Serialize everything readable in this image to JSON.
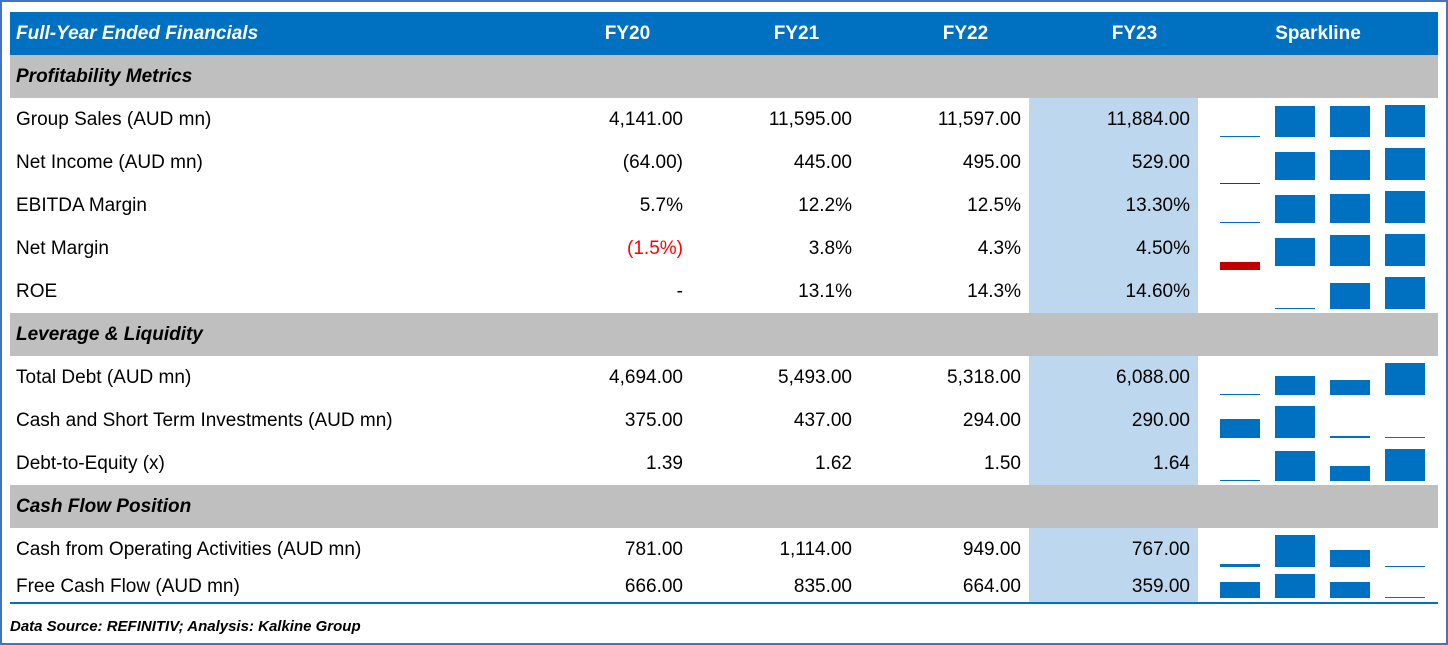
{
  "header": {
    "title": "Full-Year Ended Financials",
    "years": [
      "FY20",
      "FY21",
      "FY22",
      "FY23"
    ],
    "sparkline": "Sparkline"
  },
  "colors": {
    "header": "#0070C0",
    "section": "#BFBFBF",
    "highlight": "#BDD7EE",
    "bar": "#0070C0",
    "negative": "#C00000"
  },
  "sections": [
    {
      "title": "Profitability Metrics",
      "rows": [
        {
          "label": "Group Sales (AUD mn)",
          "cells": [
            "4,141.00",
            "11,595.00",
            "11,597.00",
            "11,884.00"
          ],
          "values": [
            4141,
            11595,
            11597,
            11884
          ]
        },
        {
          "label": "Net Income (AUD mn)",
          "cells": [
            "(64.00)",
            "445.00",
            "495.00",
            "529.00"
          ],
          "values": [
            -64,
            445,
            495,
            529
          ]
        },
        {
          "label": "EBITDA Margin",
          "cells": [
            "5.7%",
            "12.2%",
            "12.5%",
            "13.30%"
          ],
          "values": [
            5.7,
            12.2,
            12.5,
            13.3
          ]
        },
        {
          "label": "Net Margin",
          "cells": [
            "(1.5%)",
            "3.8%",
            "4.3%",
            "4.50%"
          ],
          "values": [
            -1.5,
            3.8,
            4.3,
            4.5
          ]
        },
        {
          "label": "ROE",
          "cells": [
            "-",
            "13.1%",
            "14.3%",
            "14.60%"
          ],
          "values": [
            null,
            13.1,
            14.3,
            14.6
          ]
        }
      ]
    },
    {
      "title": "Leverage & Liquidity",
      "rows": [
        {
          "label": "Total Debt (AUD mn)",
          "cells": [
            "4,694.00",
            "5,493.00",
            "5,318.00",
            "6,088.00"
          ],
          "values": [
            4694,
            5493,
            5318,
            6088
          ]
        },
        {
          "label": "Cash and Short Term Investments (AUD mn)",
          "cells": [
            "375.00",
            "437.00",
            "294.00",
            "290.00"
          ],
          "values": [
            375,
            437,
            294,
            290
          ]
        },
        {
          "label": "Debt-to-Equity (x)",
          "cells": [
            "1.39",
            "1.62",
            "1.50",
            "1.64"
          ],
          "values": [
            1.39,
            1.62,
            1.5,
            1.64
          ]
        }
      ]
    },
    {
      "title": "Cash Flow Position",
      "rows": [
        {
          "label": "Cash from Operating Activities (AUD mn)",
          "cells": [
            "781.00",
            "1,114.00",
            "949.00",
            "767.00"
          ],
          "values": [
            781,
            1114,
            949,
            767
          ]
        },
        {
          "label": "Free Cash Flow (AUD mn)",
          "cells": [
            "666.00",
            "835.00",
            "664.00",
            "359.00"
          ],
          "values": [
            666,
            835,
            664,
            359
          ]
        }
      ]
    }
  ],
  "footer": "Data Source: REFINITIV; Analysis: Kalkine Group"
}
